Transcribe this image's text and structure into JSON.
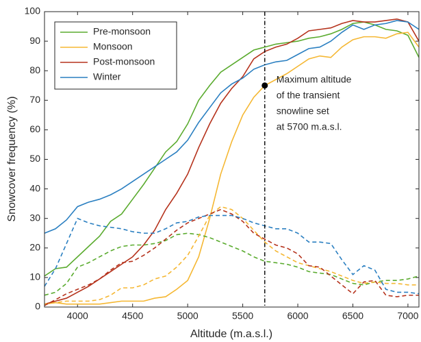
{
  "chart_data": {
    "type": "line",
    "x_label": "Altitude (m.a.s.l.)",
    "y_label": "Snowcover frequency (%)",
    "x": [
      3700,
      3800,
      3900,
      4000,
      4100,
      4200,
      4300,
      4400,
      4500,
      4600,
      4700,
      4800,
      4900,
      5000,
      5100,
      5200,
      5300,
      5400,
      5500,
      5600,
      5700,
      5800,
      5900,
      6000,
      6100,
      6200,
      6300,
      6400,
      6500,
      6600,
      6700,
      6800,
      6900,
      7000,
      7100
    ],
    "series": [
      {
        "name": "Pre-monsoon",
        "color": "#5aab2e",
        "dashed": false,
        "values": [
          10.5,
          13,
          13.5,
          17,
          20.5,
          24,
          29,
          31.5,
          36.5,
          41.5,
          47,
          52.5,
          56,
          62,
          70,
          75,
          79.5,
          82,
          84.5,
          87,
          88,
          89,
          89.5,
          90,
          91,
          91.5,
          92.5,
          94,
          96,
          96.5,
          95.5,
          94,
          93.5,
          92,
          84.5
        ]
      },
      {
        "name": "Monsoon",
        "color": "#f5b732",
        "dashed": false,
        "values": [
          1,
          1.5,
          1,
          1,
          1,
          1,
          1.5,
          2,
          2,
          2,
          3,
          3.5,
          6,
          9,
          17,
          30,
          45,
          56,
          65,
          71,
          75,
          77,
          79,
          81.5,
          84,
          85,
          84.5,
          88,
          90.5,
          91.5,
          91.5,
          91,
          92.5,
          93,
          88
        ]
      },
      {
        "name": "Post-monsoon",
        "color": "#b5321c",
        "dashed": false,
        "values": [
          1,
          2,
          3,
          5,
          7,
          9.5,
          12,
          14.5,
          17,
          21,
          26,
          33,
          38.5,
          45,
          54,
          62,
          69,
          74,
          78,
          84,
          86.5,
          88,
          89,
          91,
          93.5,
          94,
          94.5,
          96,
          97,
          96.5,
          96.5,
          97,
          97.5,
          96.5,
          90
        ]
      },
      {
        "name": "Winter",
        "color": "#2a7fc1",
        "dashed": false,
        "values": [
          25,
          26.5,
          29.5,
          34,
          35.5,
          36.5,
          38,
          40,
          42.5,
          45,
          47.5,
          50,
          52.5,
          56.5,
          62.5,
          67.5,
          72.5,
          75.5,
          77.5,
          80.5,
          82,
          83,
          83.5,
          85.5,
          87.5,
          88,
          90,
          93,
          95.5,
          94,
          95.5,
          96,
          97,
          96.5,
          94
        ]
      },
      {
        "color": "#5aab2e",
        "dashed": true,
        "values": [
          4,
          5,
          8,
          13.5,
          15,
          17,
          19,
          20.5,
          21,
          21,
          21.5,
          22.5,
          24.5,
          25,
          24.5,
          23.5,
          22,
          20.5,
          19,
          17,
          15.5,
          15,
          14.5,
          13.5,
          12,
          11.5,
          11,
          9.5,
          8,
          7.5,
          8.5,
          9,
          9,
          9.5,
          10.5
        ]
      },
      {
        "color": "#f5b732",
        "dashed": true,
        "values": [
          1,
          1.5,
          2,
          2,
          2,
          2.5,
          4,
          6.5,
          6.5,
          7.5,
          9.5,
          10.5,
          13.5,
          17.5,
          24,
          31,
          34,
          33,
          30,
          26,
          22,
          19,
          17,
          15,
          14,
          13,
          12,
          10.5,
          9,
          8,
          8.5,
          8,
          8,
          7.5,
          7.5
        ]
      },
      {
        "color": "#b5321c",
        "dashed": true,
        "values": [
          0.5,
          2.5,
          4.5,
          6,
          7.5,
          9.5,
          12.5,
          15,
          15.5,
          17.5,
          20,
          23,
          26,
          28.5,
          30,
          31.5,
          33,
          31.5,
          29,
          25,
          23,
          21,
          20,
          18,
          14,
          13.5,
          10.5,
          7.5,
          4.5,
          8.5,
          9,
          4,
          3.5,
          4,
          4
        ]
      },
      {
        "color": "#2a7fc1",
        "dashed": true,
        "values": [
          7,
          13,
          21.5,
          30,
          28.5,
          27.5,
          27,
          26.5,
          25.5,
          25,
          25,
          26.5,
          28.5,
          29,
          30.5,
          31,
          31,
          31,
          30,
          28.5,
          27.5,
          26.5,
          26.5,
          25,
          22,
          22,
          21.5,
          16,
          11,
          14,
          12.5,
          6,
          5,
          5,
          4.5
        ]
      }
    ],
    "xlim": [
      3700,
      7100
    ],
    "ylim": [
      0,
      100
    ],
    "xticks": [
      4000,
      4500,
      5000,
      5500,
      6000,
      6500,
      7000
    ],
    "yticks": [
      0,
      10,
      20,
      30,
      40,
      50,
      60,
      70,
      80,
      90,
      100
    ],
    "legend": "top-left",
    "annotation": {
      "x": 5700,
      "y": 75,
      "lines": [
        "Maximum altitude",
        "of the transient",
        "snowline set",
        "at 5700 m.a.s.l."
      ]
    }
  }
}
